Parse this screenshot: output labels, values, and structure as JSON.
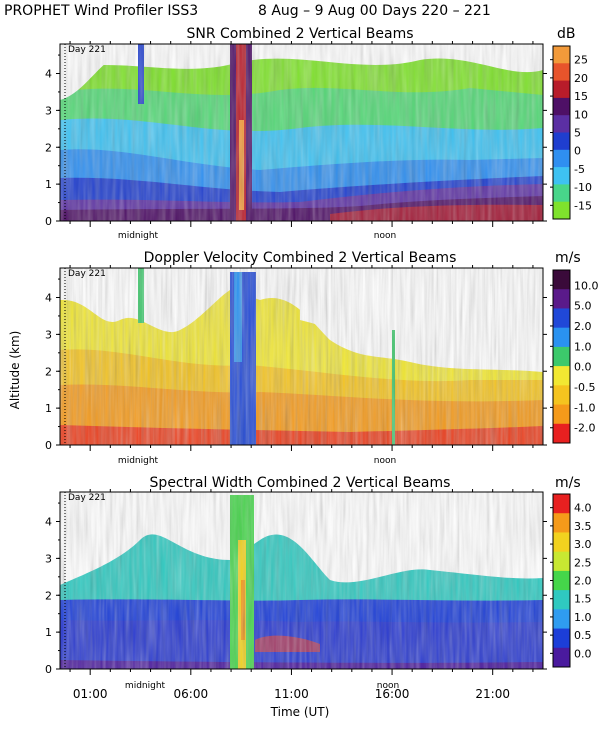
{
  "header": {
    "title": "PROPHET Wind Profiler ISS3",
    "dates": "8 Aug –  9 Aug 00 Days 220 – 221"
  },
  "common": {
    "y_axis_label": "Altitude (km)",
    "x_axis_label": "Time (UT)",
    "day_marker": "Day 221",
    "midnight_label": "midnight",
    "noon_label": "noon"
  },
  "chart_data": [
    {
      "type": "heatmap",
      "id": "snr",
      "title": "SNR Combined 2 Vertical Beams",
      "unit": "dB",
      "ylabel": "",
      "ylim": [
        0,
        4.8
      ],
      "yticks": [
        "0",
        "1",
        "2",
        "3",
        "4"
      ],
      "x_hours_range": [
        -0.5,
        23.5
      ],
      "colorbar_labels": [
        "25",
        "20",
        "15",
        "10",
        "5",
        "0",
        "-5",
        "-10",
        "-15"
      ],
      "colorbar_colors": [
        "#f29a3a",
        "#e8542b",
        "#b81c2a",
        "#4e1066",
        "#5b2fa3",
        "#1f3ecf",
        "#2f8ff0",
        "#3ec2f2",
        "#48d68a",
        "#7fe22c"
      ]
    },
    {
      "type": "heatmap",
      "id": "doppler",
      "title": "Doppler Velocity Combined 2 Vertical Beams",
      "unit": "m/s",
      "ylabel": "Altitude (km)",
      "ylim": [
        0,
        4.8
      ],
      "yticks": [
        "0",
        "1",
        "2",
        "3",
        "4"
      ],
      "x_hours_range": [
        -0.5,
        23.5
      ],
      "colorbar_labels": [
        "10.0",
        "5.0",
        "2.0",
        "1.0",
        "0.0",
        "-0.5",
        "-1.0",
        "-2.0"
      ],
      "colorbar_colors": [
        "#3a0a3a",
        "#5a1a8a",
        "#2048d8",
        "#2a92f0",
        "#3cc96b",
        "#f2e832",
        "#f5c41f",
        "#f59a1a",
        "#e82020"
      ]
    },
    {
      "type": "heatmap",
      "id": "width",
      "title": "Spectral Width Combined 2 Vertical Beams",
      "unit": "m/s",
      "ylabel": "",
      "ylim": [
        0,
        4.8
      ],
      "yticks": [
        "0",
        "1",
        "2",
        "3",
        "4"
      ],
      "x_hours_range": [
        -0.5,
        23.5
      ],
      "xticks": [
        "01:00",
        "06:00",
        "11:00",
        "16:00",
        "21:00"
      ],
      "xtick_hours": [
        1,
        6,
        11,
        16,
        21
      ],
      "colorbar_labels": [
        "4.0",
        "3.5",
        "3.0",
        "2.5",
        "2.0",
        "1.5",
        "1.0",
        "0.5",
        "0.0"
      ],
      "colorbar_colors": [
        "#e82020",
        "#f59a1a",
        "#f2d21f",
        "#c8e832",
        "#45d64a",
        "#2fc9c0",
        "#2f9cf0",
        "#1c3ed8",
        "#4a1a9e"
      ]
    }
  ]
}
